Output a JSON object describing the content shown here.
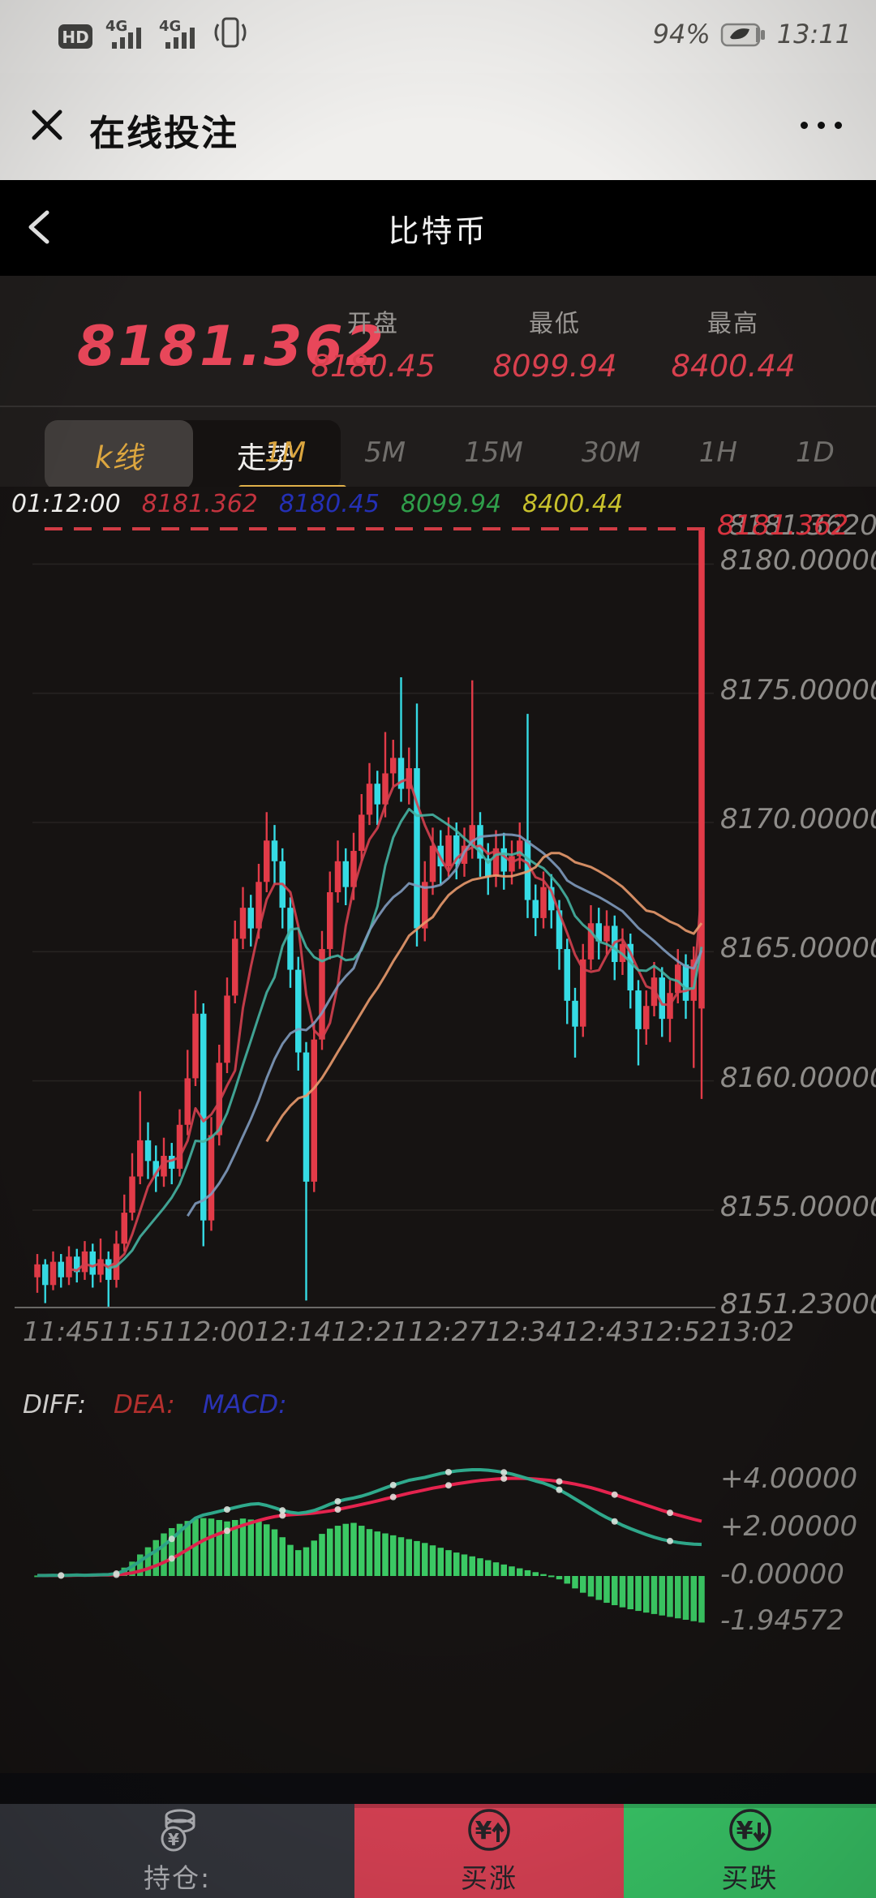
{
  "status_bar": {
    "battery_percent": "94%",
    "time": "13:11",
    "icons": [
      "hd-badge",
      "signal-4g",
      "signal-4g",
      "vibrate-icon",
      "battery-icon"
    ],
    "hd_label": "HD",
    "network_label": "4G"
  },
  "wechat_header": {
    "title": "在线投注"
  },
  "nav_bar": {
    "title": "比特币"
  },
  "quote": {
    "price": "8181.362",
    "open_label": "开盘",
    "open_value": "8180.45",
    "low_label": "最低",
    "low_value": "8099.94",
    "high_label": "最高",
    "high_value": "8400.44"
  },
  "tabs": {
    "chart_type": [
      {
        "label": "k线",
        "active": true
      },
      {
        "label": "走势",
        "active": false
      }
    ],
    "timeframes": [
      {
        "label": "1M",
        "active": true
      },
      {
        "label": "5M",
        "active": false
      },
      {
        "label": "15M",
        "active": false
      },
      {
        "label": "30M",
        "active": false
      },
      {
        "label": "1H",
        "active": false
      },
      {
        "label": "1D",
        "active": false
      }
    ]
  },
  "ohlc_info": {
    "time": "01:12:00",
    "price": "8181.362",
    "open": "8180.45",
    "low": "8099.94",
    "high": "8400.44"
  },
  "macd_header": {
    "diff_label": "DIFF:",
    "dea_label": "DEA:",
    "macd_label": "MACD:"
  },
  "bottom_bar": {
    "position": {
      "label": "持仓:"
    },
    "buy_up": {
      "label": "买涨"
    },
    "buy_down": {
      "label": "买跌"
    }
  },
  "colors": {
    "up_candle": "#e23b48",
    "down_candle": "#35dbe4",
    "current_price_line": "#d23c45",
    "grid": "#262321",
    "axis": "#6b6a68",
    "ma5": "#d4404f",
    "ma10": "#45b3a2",
    "ma20": "#7e9abc",
    "ma30": "#e89a6d",
    "macd_hist": "#3bc964",
    "diff_line": "#2fa98c",
    "dea_line": "#e5234e",
    "dot": "#e4e8e2",
    "info_time": "#f0efed",
    "info_price": "#c3333e",
    "info_open": "#2430b5",
    "info_low": "#2f9e4a",
    "info_high": "#c8c12c",
    "gold": "#dca63f"
  },
  "chart_data": [
    {
      "type": "candlestick",
      "title": "比特币 1M",
      "current_price": 8181.362,
      "price_min": 8151.23,
      "y_ticks": [
        {
          "label": "8181.36200",
          "value": 8181.362
        },
        {
          "label": "8180.00000",
          "value": 8180
        },
        {
          "label": "8175.00000",
          "value": 8175
        },
        {
          "label": "8170.00000",
          "value": 8170
        },
        {
          "label": "8165.00000",
          "value": 8165
        },
        {
          "label": "8160.00000",
          "value": 8160
        },
        {
          "label": "8155.00000",
          "value": 8155
        },
        {
          "label": "8151.23000",
          "value": 8151.23
        }
      ],
      "x_labels": [
        "11:45",
        "11:51",
        "12:00",
        "12:14",
        "12:21",
        "12:27",
        "12:34",
        "12:43",
        "12:52",
        "13:02"
      ],
      "ma_periods": [
        5,
        10,
        20,
        30
      ],
      "candles": [
        [
          8152.4,
          8152.9,
          8151.8,
          8153.3
        ],
        [
          8152.9,
          8152.1,
          8151.4,
          8153.1
        ],
        [
          8152.1,
          8153.0,
          8151.9,
          8153.4
        ],
        [
          8153.0,
          8152.4,
          8152.0,
          8153.3
        ],
        [
          8152.4,
          8153.2,
          8152.1,
          8153.6
        ],
        [
          8153.2,
          8152.6,
          8152.2,
          8153.5
        ],
        [
          8152.6,
          8153.4,
          8152.3,
          8153.8
        ],
        [
          8153.4,
          8152.5,
          8152.0,
          8153.7
        ],
        [
          8152.5,
          8153.1,
          8152.2,
          8153.9
        ],
        [
          8153.1,
          8152.3,
          8151.23,
          8153.4
        ],
        [
          8152.3,
          8153.7,
          8152.0,
          8154.2
        ],
        [
          8153.7,
          8154.9,
          8153.4,
          8155.6
        ],
        [
          8154.9,
          8156.3,
          8154.6,
          8157.2
        ],
        [
          8156.3,
          8157.7,
          8156.0,
          8159.6
        ],
        [
          8157.7,
          8156.9,
          8156.2,
          8158.4
        ],
        [
          8156.9,
          8156.3,
          8155.7,
          8157.5
        ],
        [
          8156.3,
          8157.1,
          8155.9,
          8157.8
        ],
        [
          8157.1,
          8156.6,
          8156.0,
          8157.6
        ],
        [
          8156.6,
          8158.3,
          8156.3,
          8158.9
        ],
        [
          8158.3,
          8160.1,
          8157.9,
          8161.2
        ],
        [
          8160.1,
          8162.6,
          8159.8,
          8163.5
        ],
        [
          8162.6,
          8154.6,
          8153.6,
          8163.0
        ],
        [
          8154.6,
          8157.9,
          8154.2,
          8158.6
        ],
        [
          8157.9,
          8160.7,
          8157.5,
          8161.4
        ],
        [
          8160.7,
          8163.3,
          8160.3,
          8164.0
        ],
        [
          8163.3,
          8165.5,
          8163.0,
          8166.2
        ],
        [
          8165.5,
          8166.7,
          8165.1,
          8167.5
        ],
        [
          8166.7,
          8165.9,
          8165.2,
          8167.2
        ],
        [
          8165.9,
          8167.7,
          8165.5,
          8168.4
        ],
        [
          8167.7,
          8169.3,
          8167.3,
          8170.4
        ],
        [
          8169.3,
          8168.5,
          8167.6,
          8169.9
        ],
        [
          8168.5,
          8166.7,
          8165.9,
          8169.0
        ],
        [
          8166.7,
          8164.3,
          8163.6,
          8167.1
        ],
        [
          8164.3,
          8161.1,
          8160.4,
          8164.8
        ],
        [
          8161.1,
          8156.1,
          8151.5,
          8161.5
        ],
        [
          8156.1,
          8161.6,
          8155.7,
          8162.3
        ],
        [
          8161.6,
          8165.1,
          8161.2,
          8165.8
        ],
        [
          8165.1,
          8167.3,
          8164.7,
          8168.1
        ],
        [
          8167.3,
          8168.5,
          8166.9,
          8169.3
        ],
        [
          8168.5,
          8167.5,
          8166.8,
          8169.0
        ],
        [
          8167.5,
          8168.9,
          8167.0,
          8169.6
        ],
        [
          8168.9,
          8170.3,
          8168.5,
          8171.1
        ],
        [
          8170.3,
          8171.5,
          8169.9,
          8172.3
        ],
        [
          8171.5,
          8170.7,
          8169.9,
          8172.0
        ],
        [
          8170.7,
          8171.9,
          8170.2,
          8173.5
        ],
        [
          8171.9,
          8172.5,
          8171.4,
          8173.2
        ],
        [
          8172.5,
          8171.3,
          8170.8,
          8175.62
        ],
        [
          8171.3,
          8172.1,
          8170.7,
          8172.9
        ],
        [
          8172.1,
          8165.9,
          8165.2,
          8174.6
        ],
        [
          8165.9,
          8167.7,
          8165.4,
          8168.5
        ],
        [
          8167.7,
          8169.1,
          8167.2,
          8169.8
        ],
        [
          8169.1,
          8168.3,
          8167.6,
          8169.7
        ],
        [
          8168.3,
          8169.5,
          8167.9,
          8170.2
        ],
        [
          8169.5,
          8168.4,
          8167.8,
          8170.0
        ],
        [
          8168.4,
          8169.1,
          8167.9,
          8169.8
        ],
        [
          8169.1,
          8169.9,
          8168.6,
          8175.5
        ],
        [
          8169.9,
          8168.6,
          8167.9,
          8170.4
        ],
        [
          8168.6,
          8167.9,
          8167.2,
          8169.2
        ],
        [
          8167.9,
          8169.0,
          8167.5,
          8169.7
        ],
        [
          8169.0,
          8168.1,
          8167.4,
          8169.6
        ],
        [
          8168.1,
          8168.7,
          8167.6,
          8169.3
        ],
        [
          8168.7,
          8169.3,
          8168.2,
          8170.0
        ],
        [
          8169.3,
          8167.0,
          8166.3,
          8174.2
        ],
        [
          8167.0,
          8166.3,
          8165.6,
          8167.6
        ],
        [
          8166.3,
          8167.5,
          8165.9,
          8168.1
        ],
        [
          8167.5,
          8166.6,
          8165.9,
          8168.0
        ],
        [
          8166.6,
          8165.1,
          8164.3,
          8167.0
        ],
        [
          8165.1,
          8163.1,
          8162.2,
          8165.5
        ],
        [
          8163.1,
          8162.1,
          8160.9,
          8163.6
        ],
        [
          8162.1,
          8164.7,
          8161.7,
          8165.3
        ],
        [
          8164.7,
          8166.1,
          8164.3,
          8166.8
        ],
        [
          8166.1,
          8165.4,
          8164.7,
          8166.7
        ],
        [
          8165.4,
          8166.0,
          8164.9,
          8166.6
        ],
        [
          8166.0,
          8164.6,
          8163.9,
          8166.4
        ],
        [
          8164.6,
          8165.3,
          8164.1,
          8165.9
        ],
        [
          8165.3,
          8163.5,
          8162.8,
          8165.7
        ],
        [
          8163.5,
          8162.0,
          8160.6,
          8163.9
        ],
        [
          8162.0,
          8162.9,
          8161.4,
          8163.5
        ],
        [
          8162.9,
          8164.0,
          8162.5,
          8164.6
        ],
        [
          8164.0,
          8162.4,
          8161.7,
          8164.4
        ],
        [
          8162.4,
          8163.4,
          8161.5,
          8163.9
        ],
        [
          8163.4,
          8164.5,
          8163.0,
          8165.1
        ],
        [
          8164.5,
          8163.1,
          8162.4,
          8164.9
        ],
        [
          8163.1,
          8164.7,
          8160.5,
          8165.2
        ],
        [
          8162.8,
          8181.362,
          8159.3,
          8181.362
        ]
      ]
    },
    {
      "type": "macd",
      "y_ticks": [
        {
          "label": "+4.00000",
          "value": 4
        },
        {
          "label": "+2.00000",
          "value": 2
        },
        {
          "label": "-0.00000",
          "value": 0
        },
        {
          "label": "-1.94572",
          "value": -1.94572
        }
      ],
      "diff": [
        0.02,
        0.02,
        0.03,
        0.02,
        0.03,
        0.04,
        0.03,
        0.04,
        0.05,
        0.06,
        0.1,
        0.22,
        0.4,
        0.62,
        0.85,
        1.05,
        1.28,
        1.55,
        1.85,
        2.15,
        2.42,
        2.55,
        2.62,
        2.7,
        2.78,
        2.86,
        2.94,
        3.0,
        3.02,
        2.95,
        2.85,
        2.74,
        2.66,
        2.62,
        2.66,
        2.74,
        2.86,
        3.0,
        3.12,
        3.2,
        3.26,
        3.34,
        3.44,
        3.56,
        3.68,
        3.8,
        3.9,
        4.0,
        4.06,
        4.12,
        4.2,
        4.28,
        4.34,
        4.39,
        4.42,
        4.44,
        4.44,
        4.42,
        4.38,
        4.33,
        4.26,
        4.17,
        4.07,
        3.97,
        3.88,
        3.76,
        3.6,
        3.42,
        3.22,
        3.02,
        2.82,
        2.62,
        2.44,
        2.28,
        2.12,
        1.98,
        1.85,
        1.73,
        1.62,
        1.53,
        1.46,
        1.4,
        1.36,
        1.33,
        1.32
      ],
      "dea": [
        0.02,
        0.02,
        0.02,
        0.02,
        0.02,
        0.03,
        0.03,
        0.03,
        0.04,
        0.04,
        0.05,
        0.08,
        0.13,
        0.21,
        0.31,
        0.43,
        0.57,
        0.73,
        0.91,
        1.11,
        1.31,
        1.49,
        1.64,
        1.77,
        1.89,
        2.01,
        2.12,
        2.22,
        2.32,
        2.41,
        2.48,
        2.53,
        2.56,
        2.58,
        2.6,
        2.63,
        2.67,
        2.72,
        2.78,
        2.85,
        2.92,
        2.99,
        3.06,
        3.14,
        3.22,
        3.3,
        3.38,
        3.46,
        3.53,
        3.6,
        3.67,
        3.73,
        3.79,
        3.85,
        3.9,
        3.95,
        3.99,
        4.02,
        4.05,
        4.07,
        4.08,
        4.08,
        4.07,
        4.05,
        4.02,
        3.99,
        3.95,
        3.9,
        3.84,
        3.77,
        3.69,
        3.6,
        3.5,
        3.4,
        3.29,
        3.18,
        3.07,
        2.96,
        2.85,
        2.74,
        2.64,
        2.55,
        2.46,
        2.37,
        2.29
      ],
      "macd_hist": [
        0.02,
        0.02,
        0.03,
        0.02,
        0.03,
        0.04,
        0.04,
        0.05,
        0.06,
        0.08,
        0.15,
        0.35,
        0.6,
        0.9,
        1.2,
        1.5,
        1.78,
        2.0,
        2.18,
        2.3,
        2.38,
        2.42,
        2.4,
        2.34,
        2.28,
        2.34,
        2.4,
        2.36,
        2.28,
        2.16,
        1.95,
        1.62,
        1.3,
        1.08,
        1.2,
        1.48,
        1.76,
        1.98,
        2.1,
        2.18,
        2.22,
        2.1,
        1.96,
        1.86,
        1.78,
        1.7,
        1.62,
        1.54,
        1.46,
        1.38,
        1.28,
        1.18,
        1.08,
        0.98,
        0.9,
        0.82,
        0.74,
        0.66,
        0.57,
        0.48,
        0.4,
        0.32,
        0.24,
        0.16,
        0.08,
        0.02,
        -0.14,
        -0.32,
        -0.52,
        -0.7,
        -0.86,
        -1.0,
        -1.12,
        -1.22,
        -1.31,
        -1.39,
        -1.46,
        -1.53,
        -1.59,
        -1.65,
        -1.71,
        -1.77,
        -1.83,
        -1.89,
        -1.94572
      ]
    }
  ]
}
